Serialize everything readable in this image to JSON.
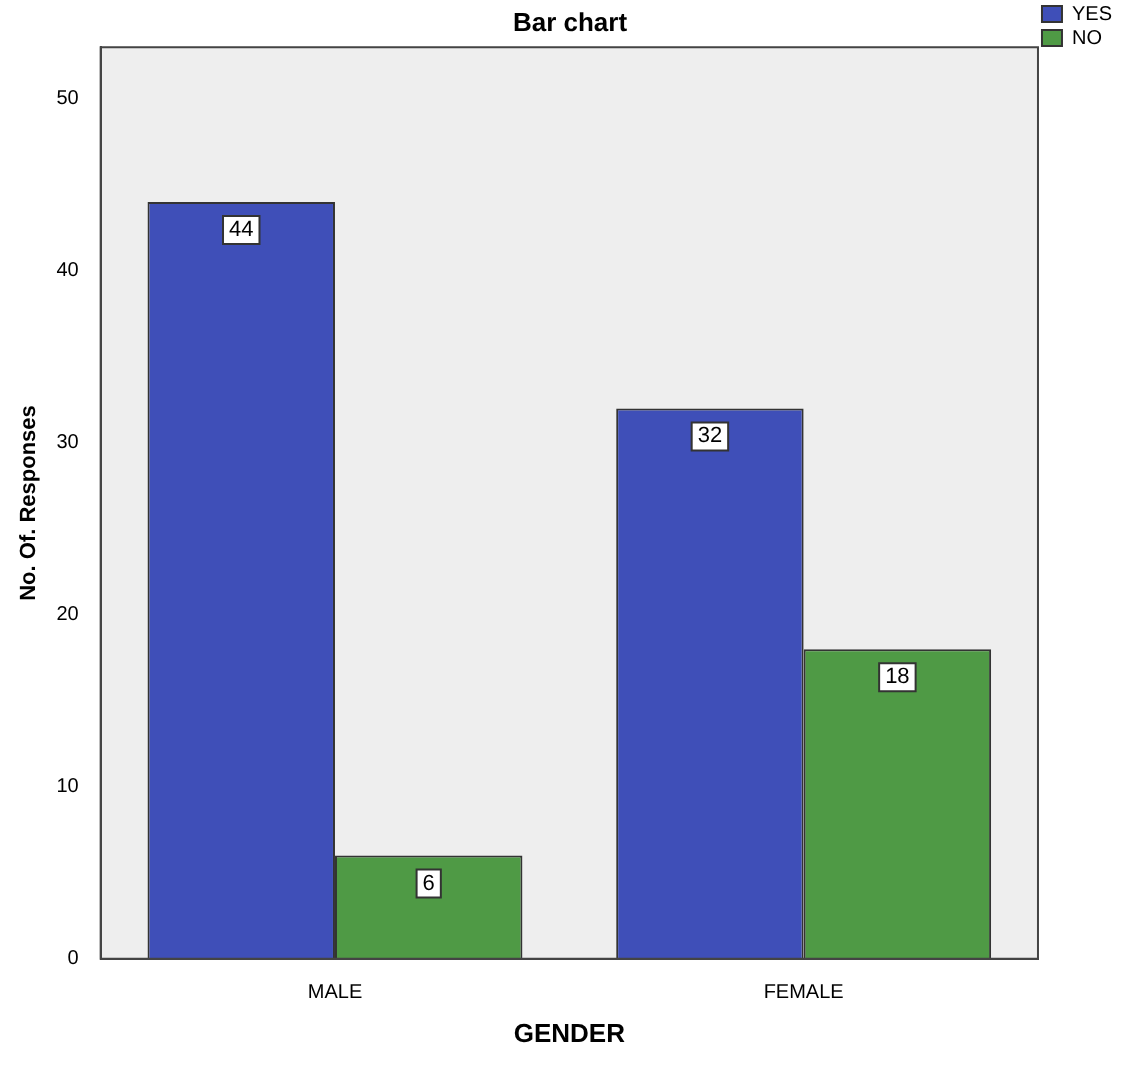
{
  "chart_data": {
    "type": "bar",
    "title": "Bar chart",
    "xlabel": "GENDER",
    "ylabel": "No. Of. Responses",
    "categories": [
      "MALE",
      "FEMALE"
    ],
    "series": [
      {
        "name": "YES",
        "color": "#3f4fb8",
        "values": [
          44,
          32
        ]
      },
      {
        "name": "NO",
        "color": "#4f9a45",
        "values": [
          6,
          18
        ]
      }
    ],
    "ylim": [
      0,
      53
    ],
    "yticks": [
      0,
      10,
      20,
      30,
      40,
      50
    ],
    "grid": false,
    "legend": "top right",
    "data_labels": true
  }
}
